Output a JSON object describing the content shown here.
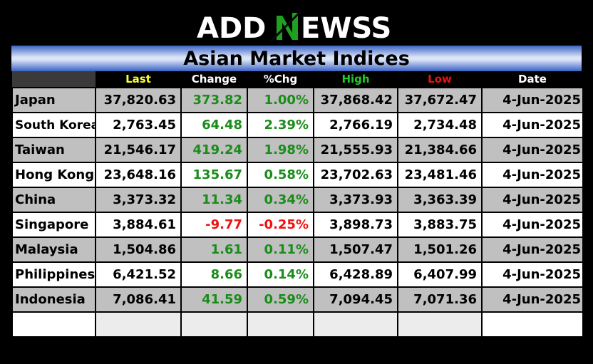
{
  "logo": {
    "brand": "ADDNEWSS",
    "part1": "ADD",
    "part2": "N",
    "part3": "EWSS"
  },
  "title": "Asian Market Indices",
  "columns": [
    "Last",
    "Change",
    "%Chg",
    "High",
    "Low",
    "Date"
  ],
  "colors": {
    "positive": "#1a8c1a",
    "negative": "#ee1111",
    "last_header": "#ffff33",
    "high_header": "#22cc22",
    "low_header": "#ee1111"
  },
  "rows": [
    {
      "name": "Japan",
      "last": "37,820.63",
      "change": "373.82",
      "pct": "1.00%",
      "high": "37,868.42",
      "low": "37,672.47",
      "date": "4-Jun-2025"
    },
    {
      "name": "South Korea",
      "last": "2,763.45",
      "change": "64.48",
      "pct": "2.39%",
      "high": "2,766.19",
      "low": "2,734.48",
      "date": "4-Jun-2025"
    },
    {
      "name": "Taiwan",
      "last": "21,546.17",
      "change": "419.24",
      "pct": "1.98%",
      "high": "21,555.93",
      "low": "21,384.66",
      "date": "4-Jun-2025"
    },
    {
      "name": "Hong Kong",
      "last": "23,648.16",
      "change": "135.67",
      "pct": "0.58%",
      "high": "23,702.63",
      "low": "23,481.46",
      "date": "4-Jun-2025"
    },
    {
      "name": "China",
      "last": "3,373.32",
      "change": "11.34",
      "pct": "0.34%",
      "high": "3,373.93",
      "low": "3,363.39",
      "date": "4-Jun-2025"
    },
    {
      "name": "Singapore",
      "last": "3,884.61",
      "change": "-9.77",
      "pct": "-0.25%",
      "high": "3,898.73",
      "low": "3,883.75",
      "date": "4-Jun-2025"
    },
    {
      "name": "Malaysia",
      "last": "1,504.86",
      "change": "1.61",
      "pct": "0.11%",
      "high": "1,507.47",
      "low": "1,501.26",
      "date": "4-Jun-2025"
    },
    {
      "name": "Philippines",
      "last": "6,421.52",
      "change": "8.66",
      "pct": "0.14%",
      "high": "6,428.89",
      "low": "6,407.99",
      "date": "4-Jun-2025"
    },
    {
      "name": "Indonesia",
      "last": "7,086.41",
      "change": "41.59",
      "pct": "0.59%",
      "high": "7,094.45",
      "low": "7,071.36",
      "date": "4-Jun-2025"
    }
  ]
}
